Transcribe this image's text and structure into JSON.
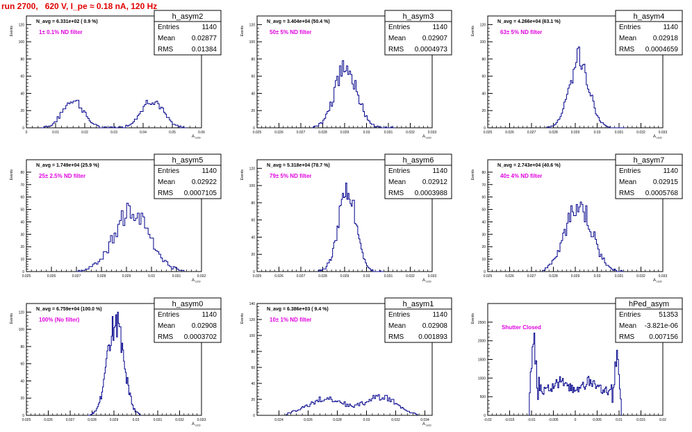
{
  "run_title": "run 2700,   620 V, I_pe ≈ 0.18 nA, 120 Hz",
  "y_axis_label": "Events",
  "stats_labels": {
    "entries": "Entries",
    "mean": "Mean",
    "rms": "RMS"
  },
  "colors": {
    "histogram": "#00008b",
    "annotation": "#e000e0",
    "title": "#e00000",
    "axes": "#000000"
  },
  "chart_data": [
    {
      "type": "histogram",
      "name": "h_asym2",
      "navg": "N_avg = 6.331e+02 ( 0.9 %)",
      "filter": "1± 0.1% ND filter",
      "stats": {
        "entries": "1140",
        "mean": "0.02877",
        "rms": "0.01384"
      },
      "xlabel": "A_LED",
      "xlim": [
        0,
        0.06
      ],
      "ylim": [
        0,
        130
      ],
      "xticks": [
        0,
        0.01,
        0.02,
        0.03,
        0.04,
        0.05,
        0.06
      ],
      "xtick_labels": [
        "0",
        "0.01",
        "0.02",
        "0.03",
        "0.04",
        "0.05",
        "0.06"
      ],
      "yticks": [
        0,
        20,
        40,
        60,
        80,
        100,
        120
      ],
      "ytick_labels": [
        "0",
        "20",
        "40",
        "60",
        "80",
        "100",
        "120"
      ],
      "peaks": [
        {
          "mu": 0.016,
          "sigma": 0.0035,
          "amp": 33
        },
        {
          "mu": 0.043,
          "sigma": 0.0037,
          "amp": 33
        }
      ],
      "range": [
        0.005,
        0.055
      ],
      "bins": 100
    },
    {
      "type": "histogram",
      "name": "h_asym3",
      "navg": "N_avg = 3.404e+04 (50.4 %)",
      "filter": "50± 5% ND filter",
      "stats": {
        "entries": "1140",
        "mean": "0.02907",
        "rms": "0.0004973"
      },
      "xlabel": "A_LED",
      "xlim": [
        0.025,
        0.033
      ],
      "ylim": [
        0,
        130
      ],
      "xticks": [
        0.025,
        0.026,
        0.027,
        0.028,
        0.029,
        0.03,
        0.031,
        0.032,
        0.033
      ],
      "xtick_labels": [
        "0.025",
        "0.026",
        "0.027",
        "0.028",
        "0.029",
        "0.03",
        "0.031",
        "0.032",
        "0.033"
      ],
      "yticks": [
        0,
        20,
        40,
        60,
        80,
        100,
        120
      ],
      "ytick_labels": [
        "0",
        "20",
        "40",
        "60",
        "80",
        "100",
        "120"
      ],
      "peaks": [
        {
          "mu": 0.02907,
          "sigma": 0.0005,
          "amp": 72
        }
      ],
      "range": [
        0.0275,
        0.0313
      ],
      "bins": 60
    },
    {
      "type": "histogram",
      "name": "h_asym4",
      "navg": "N_avg = 4.266e+04 (63.1 %)",
      "filter": "63± 5% ND filter",
      "stats": {
        "entries": "1140",
        "mean": "0.02918",
        "rms": "0.0004659"
      },
      "xlabel": "A_LED",
      "xlim": [
        0.025,
        0.033
      ],
      "ylim": [
        0,
        130
      ],
      "xticks": [
        0.025,
        0.026,
        0.027,
        0.028,
        0.029,
        0.03,
        0.031,
        0.032,
        0.033
      ],
      "xtick_labels": [
        "0.025",
        "0.026",
        "0.027",
        "0.028",
        "0.029",
        "0.03",
        "0.031",
        "0.032",
        "0.033"
      ],
      "yticks": [
        0,
        20,
        40,
        60,
        80,
        100,
        120
      ],
      "ytick_labels": [
        "0",
        "20",
        "40",
        "60",
        "80",
        "100",
        "120"
      ],
      "peaks": [
        {
          "mu": 0.02918,
          "sigma": 0.00045,
          "amp": 80
        }
      ],
      "range": [
        0.0277,
        0.0313
      ],
      "bins": 60
    },
    {
      "type": "histogram",
      "name": "h_asym5",
      "navg": "N_avg = 1.749e+04 (25.9 %)",
      "filter": "25± 2.5% ND filter",
      "stats": {
        "entries": "1140",
        "mean": "0.02922",
        "rms": "0.0007105"
      },
      "xlabel": "A_LED",
      "xlim": [
        0.025,
        0.032
      ],
      "ylim": [
        0,
        90
      ],
      "xticks": [
        0.025,
        0.026,
        0.027,
        0.028,
        0.029,
        0.03,
        0.031,
        0.032
      ],
      "xtick_labels": [
        "0.025",
        "0.026",
        "0.027",
        "0.028",
        "0.029",
        "0.03",
        "0.031",
        "0.032"
      ],
      "yticks": [
        0,
        10,
        20,
        30,
        40,
        50,
        60,
        70,
        80
      ],
      "ytick_labels": [
        "0",
        "10",
        "20",
        "30",
        "40",
        "50",
        "60",
        "70",
        "80"
      ],
      "peaks": [
        {
          "mu": 0.02922,
          "sigma": 0.0007,
          "amp": 48
        }
      ],
      "range": [
        0.027,
        0.0313
      ],
      "bins": 60
    },
    {
      "type": "histogram",
      "name": "h_asym6",
      "navg": "N_avg = 5.318e+04 (78.7 %)",
      "filter": "79± 5% ND filter",
      "stats": {
        "entries": "1140",
        "mean": "0.02912",
        "rms": "0.0003988"
      },
      "xlabel": "A_LED",
      "xlim": [
        0.025,
        0.033
      ],
      "ylim": [
        0,
        130
      ],
      "xticks": [
        0.025,
        0.026,
        0.027,
        0.028,
        0.029,
        0.03,
        0.031,
        0.032,
        0.033
      ],
      "xtick_labels": [
        "0.025",
        "0.026",
        "0.027",
        "0.028",
        "0.029",
        "0.03",
        "0.031",
        "0.032",
        "0.033"
      ],
      "yticks": [
        0,
        20,
        40,
        60,
        80,
        100,
        120
      ],
      "ytick_labels": [
        "0",
        "20",
        "40",
        "60",
        "80",
        "100",
        "120"
      ],
      "peaks": [
        {
          "mu": 0.02912,
          "sigma": 0.0004,
          "amp": 95
        }
      ],
      "range": [
        0.0278,
        0.0308
      ],
      "bins": 60
    },
    {
      "type": "histogram",
      "name": "h_asym7",
      "navg": "N_avg = 2.743e+04 (40.6 %)",
      "filter": "40± 4% ND filter",
      "stats": {
        "entries": "1140",
        "mean": "0.02915",
        "rms": "0.0005768"
      },
      "xlabel": "A_LED",
      "xlim": [
        0.025,
        0.033
      ],
      "ylim": [
        0,
        90
      ],
      "xticks": [
        0.025,
        0.026,
        0.027,
        0.028,
        0.029,
        0.03,
        0.031,
        0.032,
        0.033
      ],
      "xtick_labels": [
        "0.025",
        "0.026",
        "0.027",
        "0.028",
        "0.029",
        "0.03",
        "0.031",
        "0.032",
        "0.033"
      ],
      "yticks": [
        0,
        10,
        20,
        30,
        40,
        50,
        60,
        70,
        80
      ],
      "ytick_labels": [
        "0",
        "10",
        "20",
        "30",
        "40",
        "50",
        "60",
        "70",
        "80"
      ],
      "peaks": [
        {
          "mu": 0.02915,
          "sigma": 0.0006,
          "amp": 55
        }
      ],
      "range": [
        0.0275,
        0.0312
      ],
      "bins": 60
    },
    {
      "type": "histogram",
      "name": "h_asym0",
      "navg": "N_avg = 6.759e+04 (100.0 %)",
      "filter": "100% (No filter)",
      "stats": {
        "entries": "1140",
        "mean": "0.02908",
        "rms": "0.0003702"
      },
      "xlabel": "A_LED",
      "xlim": [
        0.025,
        0.033
      ],
      "ylim": [
        0,
        130
      ],
      "xticks": [
        0.025,
        0.026,
        0.027,
        0.028,
        0.029,
        0.03,
        0.031,
        0.032,
        0.033
      ],
      "xtick_labels": [
        "0.025",
        "0.026",
        "0.027",
        "0.028",
        "0.029",
        "0.03",
        "0.031",
        "0.032",
        "0.033"
      ],
      "yticks": [
        0,
        20,
        40,
        60,
        80,
        100,
        120
      ],
      "ytick_labels": [
        "0",
        "20",
        "40",
        "60",
        "80",
        "100",
        "120"
      ],
      "peaks": [
        {
          "mu": 0.02908,
          "sigma": 0.00037,
          "amp": 108
        }
      ],
      "range": [
        0.0278,
        0.0302
      ],
      "bins": 60
    },
    {
      "type": "histogram",
      "name": "h_asym1",
      "navg": "N_avg = 6.386e+03 ( 9.4 %)",
      "filter": "10± 1% ND filter",
      "stats": {
        "entries": "1140",
        "mean": "0.02908",
        "rms": "0.001893"
      },
      "xlabel": "A_LED",
      "xlim": [
        0.0225,
        0.0345
      ],
      "ylim": [
        0,
        140
      ],
      "xticks": [
        0.024,
        0.026,
        0.028,
        0.03,
        0.032,
        0.034
      ],
      "xtick_labels": [
        "0.024",
        "0.026",
        "0.028",
        "0.03",
        "0.032",
        "0.034"
      ],
      "yticks": [
        0,
        20,
        40,
        60,
        80,
        100,
        120,
        140
      ],
      "ytick_labels": [
        "0",
        "20",
        "40",
        "60",
        "80",
        "100",
        "120",
        "140"
      ],
      "peaks": [
        {
          "mu": 0.0272,
          "sigma": 0.0013,
          "amp": 20
        },
        {
          "mu": 0.031,
          "sigma": 0.0011,
          "amp": 23
        }
      ],
      "range": [
        0.0245,
        0.0335
      ],
      "bins": 100
    },
    {
      "type": "histogram",
      "name": "hPed_asym",
      "navg": "",
      "filter": "Shutter Closed",
      "stats": {
        "entries": "51353",
        "mean": "-3.821e-06",
        "rms": "0.007156"
      },
      "xlabel": "",
      "xlim": [
        -0.02,
        0.02
      ],
      "ylim": [
        0,
        3000
      ],
      "xticks": [
        -0.02,
        -0.015,
        -0.01,
        -0.005,
        0,
        0.005,
        0.01,
        0.015,
        0.02
      ],
      "xtick_labels": [
        "-0.02",
        "-0.015",
        "-0.01",
        "-0.005",
        "0",
        "0.005",
        "0.01",
        "0.015",
        "0.02"
      ],
      "yticks": [
        0,
        500,
        1000,
        1500,
        2000,
        2500
      ],
      "ytick_labels": [
        "0",
        "500",
        "1000",
        "1500",
        "2000",
        "2500"
      ],
      "peaks": [
        {
          "mu": -0.0095,
          "sigma": 0.0006,
          "amp": 2000
        },
        {
          "mu": 0.0095,
          "sigma": 0.0006,
          "amp": 1500
        },
        {
          "mu": -0.0035,
          "sigma": 0.0015,
          "amp": 250
        },
        {
          "mu": 0.0035,
          "sigma": 0.0015,
          "amp": 250
        }
      ],
      "baseline": 650,
      "range": [
        -0.0105,
        0.0105
      ],
      "bins": 100
    }
  ]
}
